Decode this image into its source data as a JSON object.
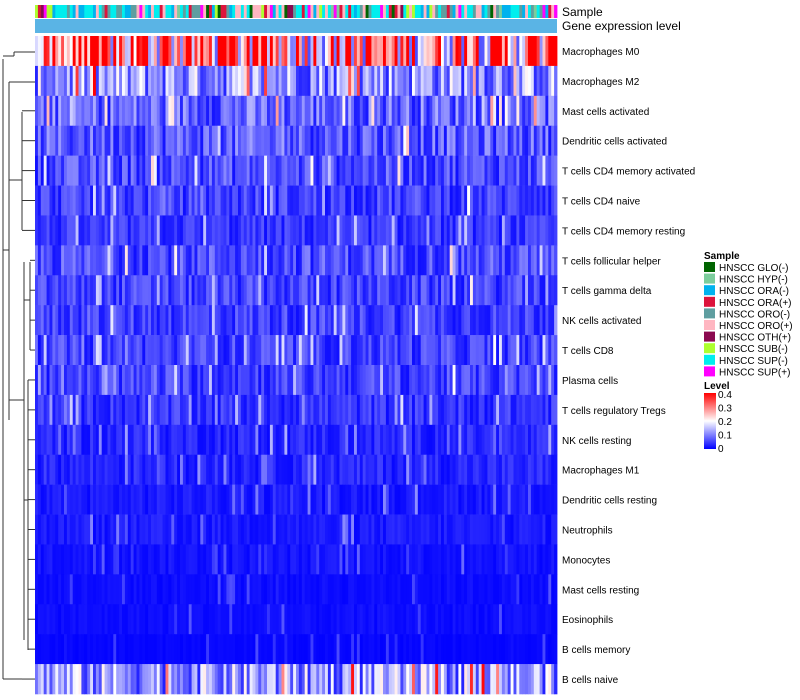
{
  "chart_data": {
    "type": "heatmap",
    "annotation_tracks": [
      "Sample",
      "Gene expression level"
    ],
    "rows": [
      {
        "label": "Macrophages M0",
        "mean": 0.28
      },
      {
        "label": "Macrophages M2",
        "mean": 0.12
      },
      {
        "label": "Mast cells activated",
        "mean": 0.08
      },
      {
        "label": "Dendritic cells activated",
        "mean": 0.07
      },
      {
        "label": "T cells CD4 memory activated",
        "mean": 0.06
      },
      {
        "label": "T cells CD4 naive",
        "mean": 0.05
      },
      {
        "label": "T cells CD4 memory resting",
        "mean": 0.04
      },
      {
        "label": "T cells follicular helper",
        "mean": 0.06
      },
      {
        "label": "T cells gamma delta",
        "mean": 0.05
      },
      {
        "label": "NK cells activated",
        "mean": 0.05
      },
      {
        "label": "T cells CD8",
        "mean": 0.05
      },
      {
        "label": "Plasma cells",
        "mean": 0.05
      },
      {
        "label": "T cells regulatory  Tregs",
        "mean": 0.04
      },
      {
        "label": "NK cells resting",
        "mean": 0.03
      },
      {
        "label": "Macrophages M1",
        "mean": 0.03
      },
      {
        "label": "Dendritic cells resting",
        "mean": 0.02
      },
      {
        "label": "Neutrophils",
        "mean": 0.02
      },
      {
        "label": "Monocytes",
        "mean": 0.015
      },
      {
        "label": "Mast cells resting",
        "mean": 0.01
      },
      {
        "label": "Eosinophils",
        "mean": 0.01
      },
      {
        "label": "B cells memory",
        "mean": 0.005
      },
      {
        "label": "B cells naive",
        "mean": 0.12
      }
    ],
    "n_samples": 180,
    "color_scale": {
      "low": "#0000ff",
      "mid": "#ffffff",
      "high": "#ff0000",
      "range": [
        0,
        0.4
      ]
    },
    "legend": {
      "sample_title": "Sample",
      "samples": [
        {
          "name": "HNSCC GLO(-)",
          "color": "#006400"
        },
        {
          "name": "HNSCC HYP(-)",
          "color": "#7ccd9c"
        },
        {
          "name": "HNSCC ORA(-)",
          "color": "#00b2ee"
        },
        {
          "name": "HNSCC ORA(+)",
          "color": "#dc143c"
        },
        {
          "name": "HNSCC ORO(-)",
          "color": "#5f9ea0"
        },
        {
          "name": "HNSCC ORO(+)",
          "color": "#ffb6c1"
        },
        {
          "name": "HNSCC OTH(+)",
          "color": "#8b0a50"
        },
        {
          "name": "HNSCC SUB(-)",
          "color": "#adff2f"
        },
        {
          "name": "HNSCC SUP(-)",
          "color": "#00eeee"
        },
        {
          "name": "HNSCC SUP(+)",
          "color": "#ff00ff"
        }
      ],
      "level_title": "Level",
      "level_ticks": [
        "0.4",
        "0.3",
        "0.2",
        "0.1",
        "0"
      ]
    },
    "expression_track_color": "#5ab4e5"
  }
}
